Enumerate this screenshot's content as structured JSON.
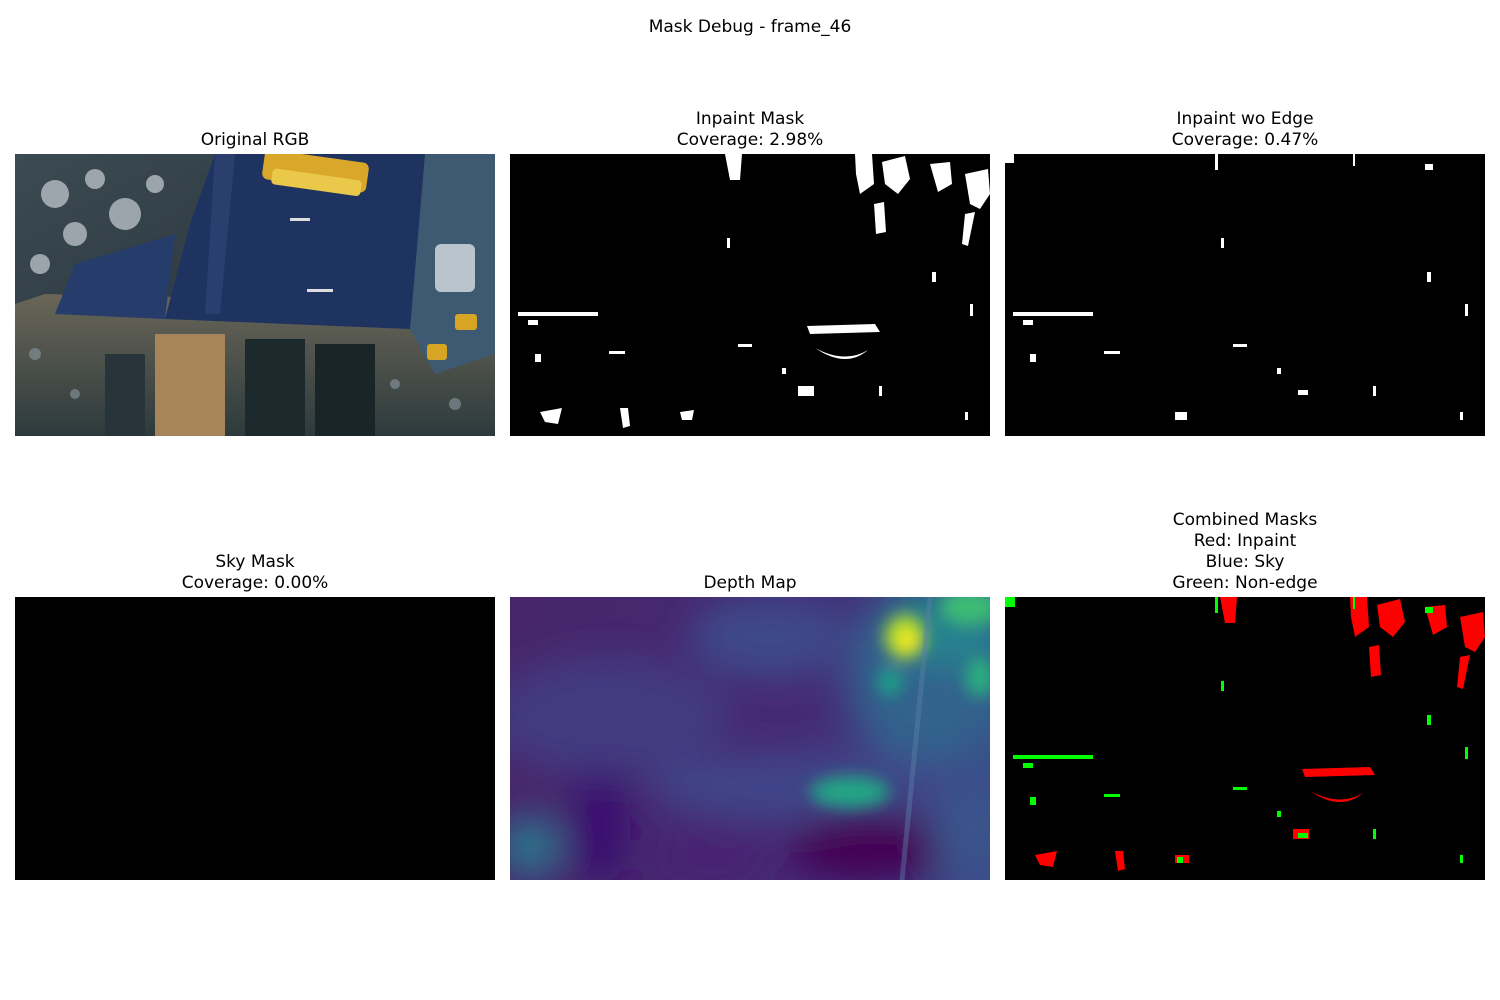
{
  "figure": {
    "title": "Mask Debug - frame_46"
  },
  "panels": {
    "original_rgb": {
      "title": "Original RGB"
    },
    "inpaint_mask": {
      "title": "Inpaint Mask",
      "coverage": "Coverage: 2.98%"
    },
    "inpaint_wo_edge": {
      "title": "Inpaint wo Edge",
      "coverage": "Coverage: 0.47%"
    },
    "sky_mask": {
      "title": "Sky Mask",
      "coverage": "Coverage: 0.00%"
    },
    "depth_map": {
      "title": "Depth Map"
    },
    "combined_masks": {
      "title": "Combined Masks",
      "legend": [
        "Red: Inpaint",
        "Blue: Sky",
        "Green: Non-edge"
      ]
    }
  },
  "colors": {
    "mask_on": "#ffffff",
    "mask_off": "#000000",
    "inpaint": "#ff0000",
    "sky": "#0000ff",
    "non_edge": "#00ff00",
    "viridis_low": "#440154",
    "viridis_high": "#fde725"
  }
}
